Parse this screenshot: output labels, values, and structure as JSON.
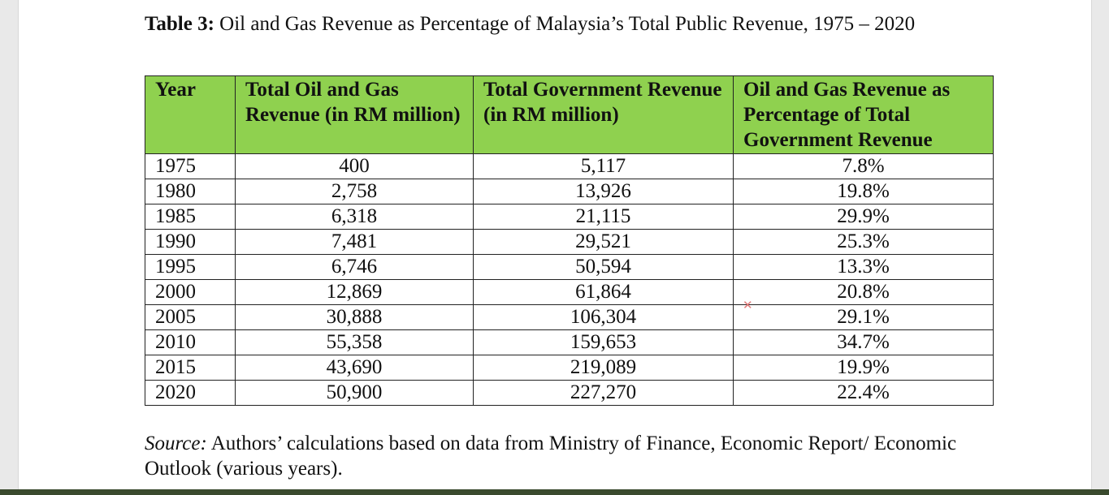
{
  "caption": {
    "label": "Table 3:",
    "text": "Oil and Gas Revenue as Percentage of Malaysia’s Total Public Revenue, 1975 – 2020"
  },
  "table": {
    "headers": [
      "Year",
      "Total Oil and Gas Revenue (in RM million)",
      "Total Government Revenue (in RM million)",
      "Oil and Gas Revenue as Percentage of Total Government Revenue"
    ],
    "header_color": "#8fd14f",
    "rows": [
      {
        "year": "1975",
        "oil_gas": "400",
        "gov": "5,117",
        "pct": "7.8%"
      },
      {
        "year": "1980",
        "oil_gas": "2,758",
        "gov": "13,926",
        "pct": "19.8%"
      },
      {
        "year": "1985",
        "oil_gas": "6,318",
        "gov": "21,115",
        "pct": "29.9%"
      },
      {
        "year": "1990",
        "oil_gas": "7,481",
        "gov": "29,521",
        "pct": "25.3%"
      },
      {
        "year": "1995",
        "oil_gas": "6,746",
        "gov": "50,594",
        "pct": "13.3%"
      },
      {
        "year": "2000",
        "oil_gas": "12,869",
        "gov": "61,864",
        "pct": "20.8%"
      },
      {
        "year": "2005",
        "oil_gas": "30,888",
        "gov": "106,304",
        "pct": "29.1%"
      },
      {
        "year": "2010",
        "oil_gas": "55,358",
        "gov": "159,653",
        "pct": "34.7%"
      },
      {
        "year": "2015",
        "oil_gas": "43,690",
        "gov": "219,089",
        "pct": "19.9%"
      },
      {
        "year": "2020",
        "oil_gas": "50,900",
        "gov": "227,270",
        "pct": "22.4%"
      }
    ]
  },
  "source": {
    "label": "Source:",
    "text": "Authors’ calculations based on data from Ministry of Finance, Economic Report/ Economic Outlook (various years)."
  },
  "annotation_mark_icon": "pen-mark-icon"
}
